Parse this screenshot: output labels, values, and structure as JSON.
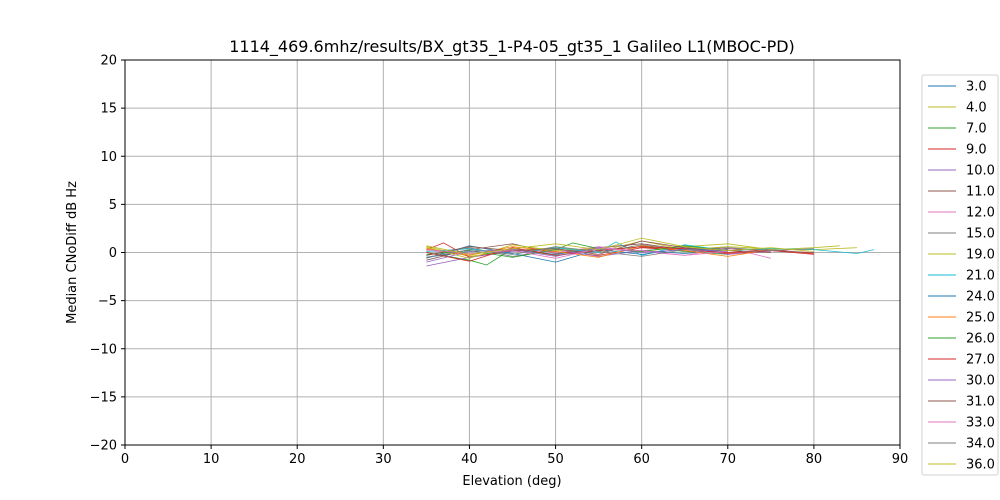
{
  "chart_data": {
    "type": "line",
    "title": "1114_469.6mhz/results/BX_gt35_1-P4-05_gt35_1 Galileo L1(MBOC-PD)",
    "xlabel": "Elevation (deg)",
    "ylabel": "Median CNoDiff dB Hz",
    "xlim": [
      0,
      90
    ],
    "ylim": [
      -20,
      20
    ],
    "xticks": [
      "0",
      "10",
      "20",
      "30",
      "40",
      "50",
      "60",
      "70",
      "80",
      "90"
    ],
    "yticks": [
      "20",
      "15",
      "10",
      "5",
      "0",
      "−5",
      "−10",
      "−15",
      "−20"
    ],
    "grid": true,
    "legend_position": "right",
    "series": [
      {
        "name": "3.0",
        "color": "#1f77b4",
        "x": [
          35,
          40,
          45,
          50,
          55,
          60,
          65,
          70
        ],
        "y": [
          -0.5,
          0.1,
          0.3,
          -0.2,
          0.4,
          0.2,
          -0.1,
          0.3
        ]
      },
      {
        "name": "4.0",
        "color": "#bcbd22",
        "x": [
          35,
          40,
          45,
          50,
          55,
          60,
          65,
          70,
          75,
          80,
          85
        ],
        "y": [
          0.6,
          -0.4,
          0.2,
          0.5,
          0.1,
          1.2,
          0.3,
          0.6,
          0.4,
          0.3,
          0.5
        ]
      },
      {
        "name": "7.0",
        "color": "#2ca02c",
        "x": [
          35,
          40,
          42,
          45,
          50,
          55,
          60,
          65,
          70
        ],
        "y": [
          0.0,
          -0.8,
          -1.3,
          0.4,
          -0.3,
          0.2,
          0.6,
          0.1,
          -0.2
        ]
      },
      {
        "name": "9.0",
        "color": "#d62728",
        "x": [
          35,
          37,
          40,
          45,
          50,
          55,
          60,
          65,
          70,
          75,
          80
        ],
        "y": [
          0.3,
          1.0,
          -0.5,
          0.2,
          0.1,
          -0.3,
          0.5,
          0.2,
          0.0,
          0.3,
          -0.1
        ]
      },
      {
        "name": "10.0",
        "color": "#9467bd",
        "x": [
          35,
          40,
          45,
          50,
          55,
          60,
          65,
          70,
          75
        ],
        "y": [
          -1.4,
          -0.5,
          0.1,
          0.3,
          -0.4,
          0.2,
          0.5,
          -0.2,
          0.1
        ]
      },
      {
        "name": "11.0",
        "color": "#8c564b",
        "x": [
          35,
          40,
          45,
          50,
          55,
          60,
          65,
          70,
          75,
          80
        ],
        "y": [
          -0.8,
          0.3,
          0.9,
          -0.1,
          0.5,
          0.9,
          0.3,
          0.4,
          0.2,
          0.0
        ]
      },
      {
        "name": "12.0",
        "color": "#e377c2",
        "x": [
          35,
          40,
          45,
          50,
          55,
          60,
          65,
          70,
          75
        ],
        "y": [
          0.2,
          -0.2,
          0.4,
          0.0,
          0.6,
          0.1,
          -0.3,
          0.5,
          -0.6
        ]
      },
      {
        "name": "15.0",
        "color": "#7f7f7f",
        "x": [
          35,
          40,
          45,
          50,
          55,
          60,
          65,
          70
        ],
        "y": [
          -0.3,
          0.5,
          -0.4,
          0.3,
          0.0,
          0.8,
          0.2,
          0.1
        ]
      },
      {
        "name": "19.0",
        "color": "#bcbd22",
        "x": [
          35,
          40,
          45,
          50,
          55,
          60,
          65,
          70,
          75,
          80,
          83
        ],
        "y": [
          0.5,
          -0.6,
          0.8,
          0.2,
          0.4,
          0.1,
          0.6,
          0.9,
          0.3,
          0.5,
          0.7
        ]
      },
      {
        "name": "21.0",
        "color": "#17becf",
        "x": [
          35,
          40,
          45,
          50,
          55,
          57,
          60,
          65,
          70,
          75,
          80,
          85,
          87
        ],
        "y": [
          0.1,
          0.4,
          -0.2,
          0.5,
          0.0,
          1.1,
          -0.3,
          0.8,
          0.2,
          0.4,
          0.3,
          -0.1,
          0.3
        ]
      },
      {
        "name": "24.0",
        "color": "#1f77b4",
        "x": [
          35,
          40,
          45,
          50,
          55,
          60,
          65,
          70
        ],
        "y": [
          -0.6,
          0.7,
          -0.1,
          -1.0,
          0.3,
          -0.2,
          0.4,
          0.1
        ]
      },
      {
        "name": "25.0",
        "color": "#ff7f0e",
        "x": [
          35,
          40,
          45,
          50,
          55,
          60,
          65,
          70,
          75
        ],
        "y": [
          0.4,
          -0.3,
          0.6,
          0.1,
          -0.5,
          0.7,
          0.2,
          -0.4,
          0.3
        ]
      },
      {
        "name": "26.0",
        "color": "#2ca02c",
        "x": [
          35,
          40,
          45,
          50,
          52,
          55,
          60,
          65,
          70
        ],
        "y": [
          -0.2,
          0.2,
          -0.5,
          0.3,
          1.0,
          0.4,
          0.1,
          0.7,
          0.2
        ]
      },
      {
        "name": "27.0",
        "color": "#d62728",
        "x": [
          35,
          40,
          45,
          50,
          55,
          60,
          65,
          70,
          75,
          80
        ],
        "y": [
          0.0,
          -0.9,
          0.5,
          -0.3,
          0.2,
          0.6,
          0.4,
          -0.1,
          0.2,
          -0.2
        ]
      },
      {
        "name": "30.0",
        "color": "#9467bd",
        "x": [
          35,
          40,
          45,
          50,
          55,
          60,
          65,
          70
        ],
        "y": [
          -1.0,
          0.1,
          0.3,
          -0.4,
          0.5,
          0.0,
          0.3,
          0.1
        ]
      },
      {
        "name": "31.0",
        "color": "#8c564b",
        "x": [
          35,
          40,
          45,
          50,
          55,
          60,
          65,
          70,
          75
        ],
        "y": [
          -0.3,
          0.6,
          0.2,
          0.4,
          -0.2,
          1.2,
          0.5,
          0.2,
          0.0
        ]
      },
      {
        "name": "33.0",
        "color": "#e377c2",
        "x": [
          35,
          40,
          45,
          50,
          55,
          60,
          65,
          70
        ],
        "y": [
          0.3,
          -0.1,
          0.2,
          -0.6,
          0.4,
          0.2,
          -0.3,
          0.1
        ]
      },
      {
        "name": "34.0",
        "color": "#7f7f7f",
        "x": [
          35,
          40,
          45,
          50,
          55,
          60,
          65,
          70,
          75,
          80
        ],
        "y": [
          -0.5,
          0.3,
          -0.2,
          0.6,
          0.1,
          -0.4,
          0.3,
          0.5,
          0.2,
          0.4
        ]
      },
      {
        "name": "36.0",
        "color": "#bcbd22",
        "x": [
          35,
          40,
          45,
          50,
          55,
          60,
          65,
          70,
          75,
          80
        ],
        "y": [
          0.7,
          -0.2,
          0.4,
          0.9,
          0.3,
          1.5,
          0.6,
          0.2,
          0.5,
          0.1
        ]
      }
    ]
  }
}
